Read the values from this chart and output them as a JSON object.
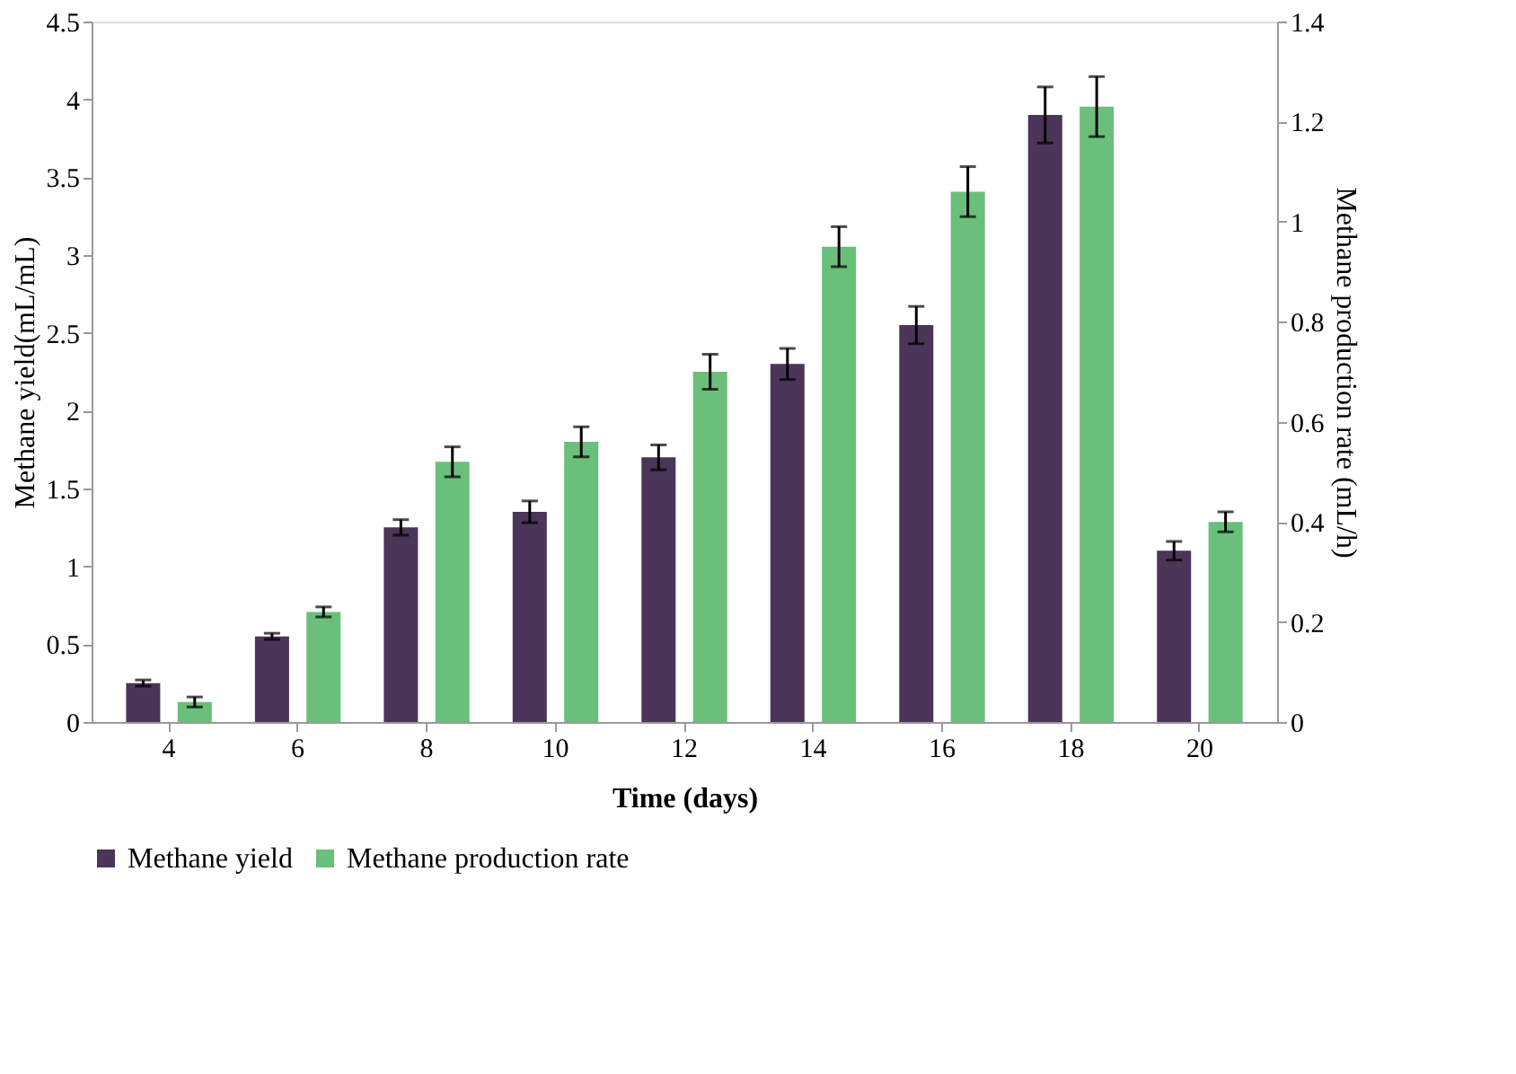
{
  "chart_data": {
    "type": "bar",
    "xlabel": "Time (days)",
    "ylabel": "Methane yield(mL/mL)",
    "y2label": "Methane production rate (mL/h)",
    "categories": [
      "4",
      "6",
      "8",
      "10",
      "12",
      "14",
      "16",
      "18",
      "20"
    ],
    "series": [
      {
        "name": "Methane yield",
        "color": "#4b3558",
        "values": [
          0.25,
          0.55,
          1.25,
          1.35,
          1.7,
          2.3,
          2.55,
          3.9,
          1.1
        ],
        "errors": [
          0.02,
          0.02,
          0.05,
          0.07,
          0.08,
          0.1,
          0.12,
          0.18,
          0.06
        ]
      },
      {
        "name": "Methane production rate",
        "color": "#6abf7b",
        "axis": "y2",
        "values": [
          0.04,
          0.22,
          0.52,
          0.56,
          0.7,
          0.95,
          1.06,
          1.23,
          0.4
        ],
        "errors": [
          0.01,
          0.01,
          0.03,
          0.03,
          0.035,
          0.04,
          0.05,
          0.06,
          0.02
        ]
      }
    ],
    "ylim": [
      0,
      4.5
    ],
    "yticks": [
      0,
      0.5,
      1,
      1.5,
      2,
      2.5,
      3,
      3.5,
      4,
      4.5
    ],
    "y2lim": [
      0,
      1.4
    ],
    "y2ticks": [
      0,
      0.2,
      0.4,
      0.6,
      0.8,
      1,
      1.2,
      1.4
    ],
    "grid": false,
    "legend": "bottom"
  }
}
